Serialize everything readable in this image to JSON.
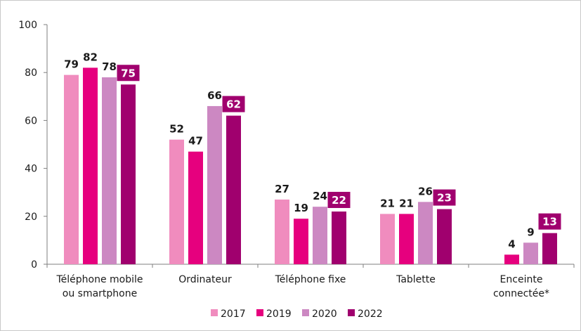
{
  "chart_data": {
    "type": "bar",
    "title": "",
    "xlabel": "",
    "ylabel": "",
    "ylim": [
      0,
      100
    ],
    "yticks": [
      "0",
      "20",
      "40",
      "60",
      "80",
      "100"
    ],
    "categories": [
      [
        "Téléphone mobile",
        "ou smartphone"
      ],
      [
        "Ordinateur"
      ],
      [
        "Téléphone fixe"
      ],
      [
        "Tablette"
      ],
      [
        "Enceinte",
        "connectée*"
      ]
    ],
    "series": [
      {
        "name": "2017",
        "color": "#f08cbe",
        "values": [
          79,
          52,
          27,
          21,
          null
        ]
      },
      {
        "name": "2019",
        "color": "#e6007e",
        "values": [
          82,
          47,
          19,
          21,
          4
        ]
      },
      {
        "name": "2020",
        "color": "#cc88c2",
        "values": [
          78,
          66,
          24,
          26,
          9
        ]
      },
      {
        "name": "2022",
        "color": "#a0006e",
        "values": [
          75,
          62,
          22,
          23,
          13
        ],
        "highlight": true
      }
    ],
    "grid": false,
    "legend_position": "bottom"
  }
}
